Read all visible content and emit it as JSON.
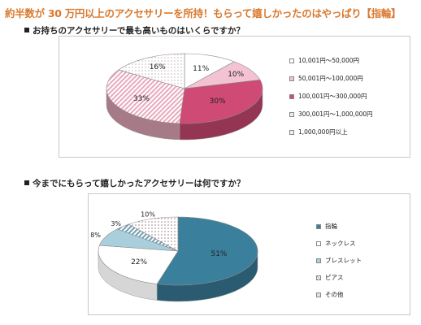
{
  "headline": "約半数が 30 万円以上のアクセサリーを所持！もらって嬉しかったのはやっぱり【指輪】",
  "colors": {
    "headline": "#d9792e",
    "pink_dark": "#cf4a74",
    "pink_light": "#f3c3d4",
    "teal": "#3a7f9b",
    "teal_light": "#a9cfdc"
  },
  "chart_data": [
    {
      "type": "pie",
      "title": "お持ちのアクセサリーで最も高いものはいくらですか？",
      "categories": [
        "10,001円～50,000円",
        "50,001円～100,000円",
        "100,001円～300,000円",
        "300,001円～1,000,000円",
        "1,000,000円以上"
      ],
      "values": [
        11,
        10,
        30,
        33,
        16
      ],
      "value_labels": [
        "11%",
        "10%",
        "30%",
        "33%",
        "16%"
      ],
      "colors": [
        "#ffffff",
        "#f3c3d4",
        "#cf4a74",
        "#e8a9bd",
        "#fbe3eb"
      ],
      "patterns": [
        "plain",
        "plain",
        "solid",
        "hatch",
        "dots"
      ],
      "style": "3d",
      "legend_position": "right"
    },
    {
      "type": "pie",
      "title": "今までにもらって嬉しかったアクセサリーは何ですか？",
      "categories": [
        "指輪",
        "ネックレス",
        "ブレスレット",
        "ピアス",
        "その他"
      ],
      "values": [
        51,
        22,
        8,
        3,
        10
      ],
      "value_labels": [
        "51%",
        "22%",
        "8%",
        "3%",
        "10%"
      ],
      "colors": [
        "#3a7f9b",
        "#ffffff",
        "#a9cfdc",
        "#6e9fb4",
        "#ffffff"
      ],
      "patterns": [
        "solid",
        "plain",
        "solid",
        "hatch",
        "dots"
      ],
      "style": "3d",
      "legend_position": "right"
    }
  ]
}
